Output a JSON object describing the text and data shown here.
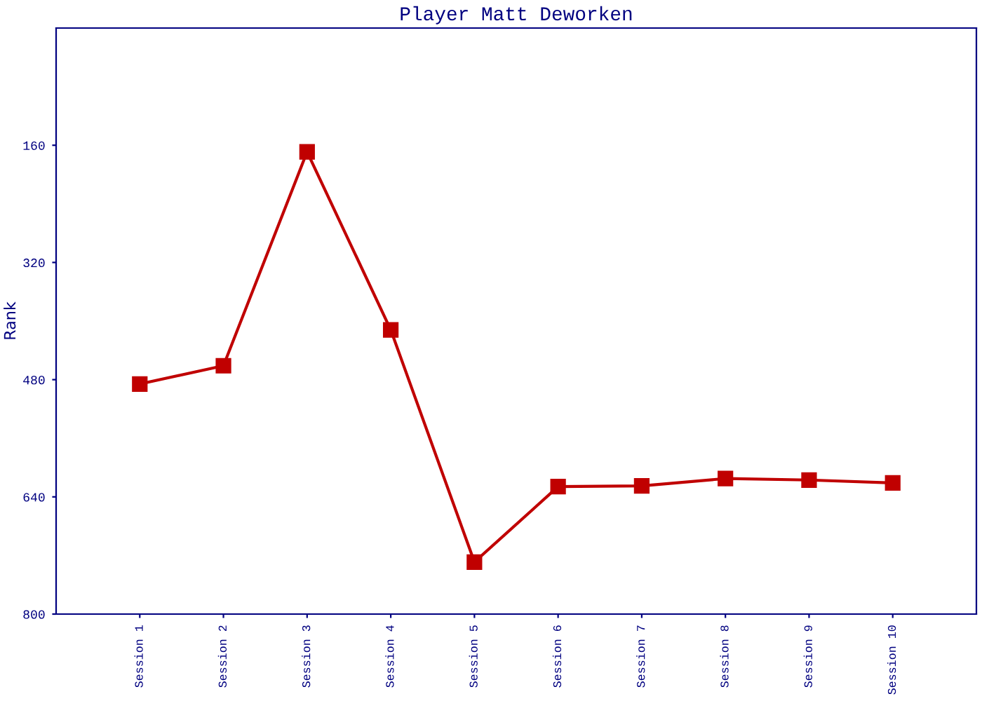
{
  "chart_data": {
    "type": "line",
    "title": "Player Matt Deworken",
    "ylabel": "Rank",
    "categories": [
      "Session 1",
      "Session 2",
      "Session 3",
      "Session 4",
      "Session 5",
      "Session 6",
      "Session 7",
      "Session 8",
      "Session 9",
      "Session 10"
    ],
    "series": [
      {
        "color": "#c00000",
        "values": [
          486,
          461,
          169,
          412,
          729,
          626,
          625,
          615,
          617,
          621
        ]
      }
    ],
    "ylim": [
      800,
      0
    ],
    "yticks": [
      160,
      320,
      480,
      640,
      800
    ],
    "grid": false,
    "legend": false,
    "marker": "square",
    "line_style": "solid"
  }
}
